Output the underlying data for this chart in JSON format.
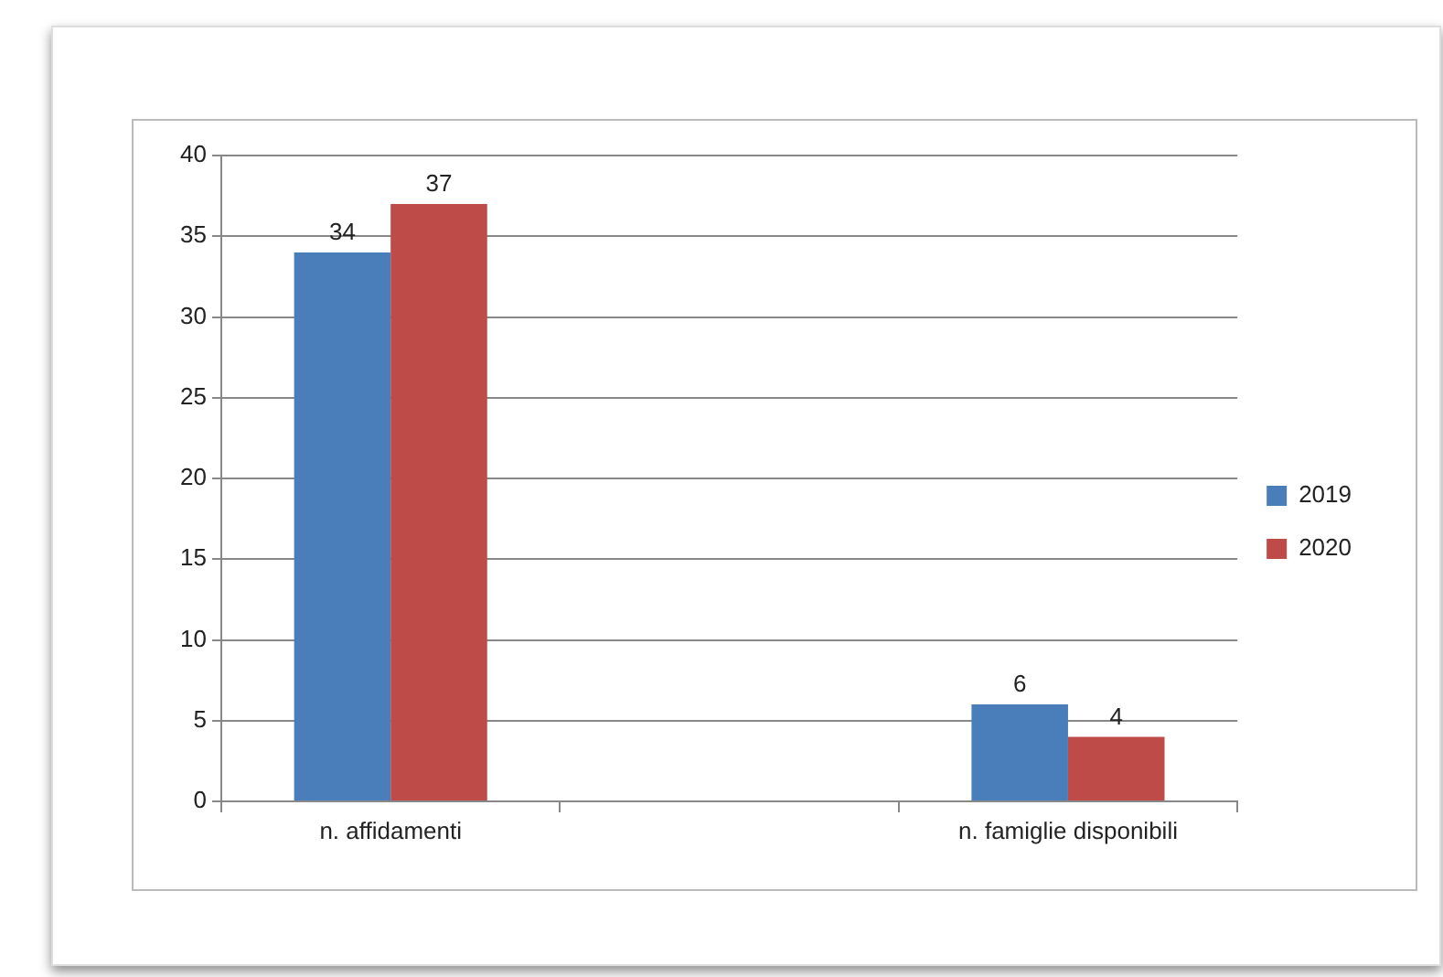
{
  "chart_data": {
    "type": "bar",
    "categories": [
      "n. affidamenti",
      null,
      "n. famiglie disponibili"
    ],
    "series": [
      {
        "name": "2019",
        "color": "#4a7ebb",
        "values": [
          34,
          null,
          6
        ]
      },
      {
        "name": "2020",
        "color": "#be4b48",
        "values": [
          37,
          null,
          4
        ]
      }
    ],
    "ylim": [
      0,
      40
    ],
    "yticks": [
      0,
      5,
      10,
      15,
      20,
      25,
      30,
      35,
      40
    ],
    "grid": "y",
    "legend": "right",
    "data_labels": true
  }
}
